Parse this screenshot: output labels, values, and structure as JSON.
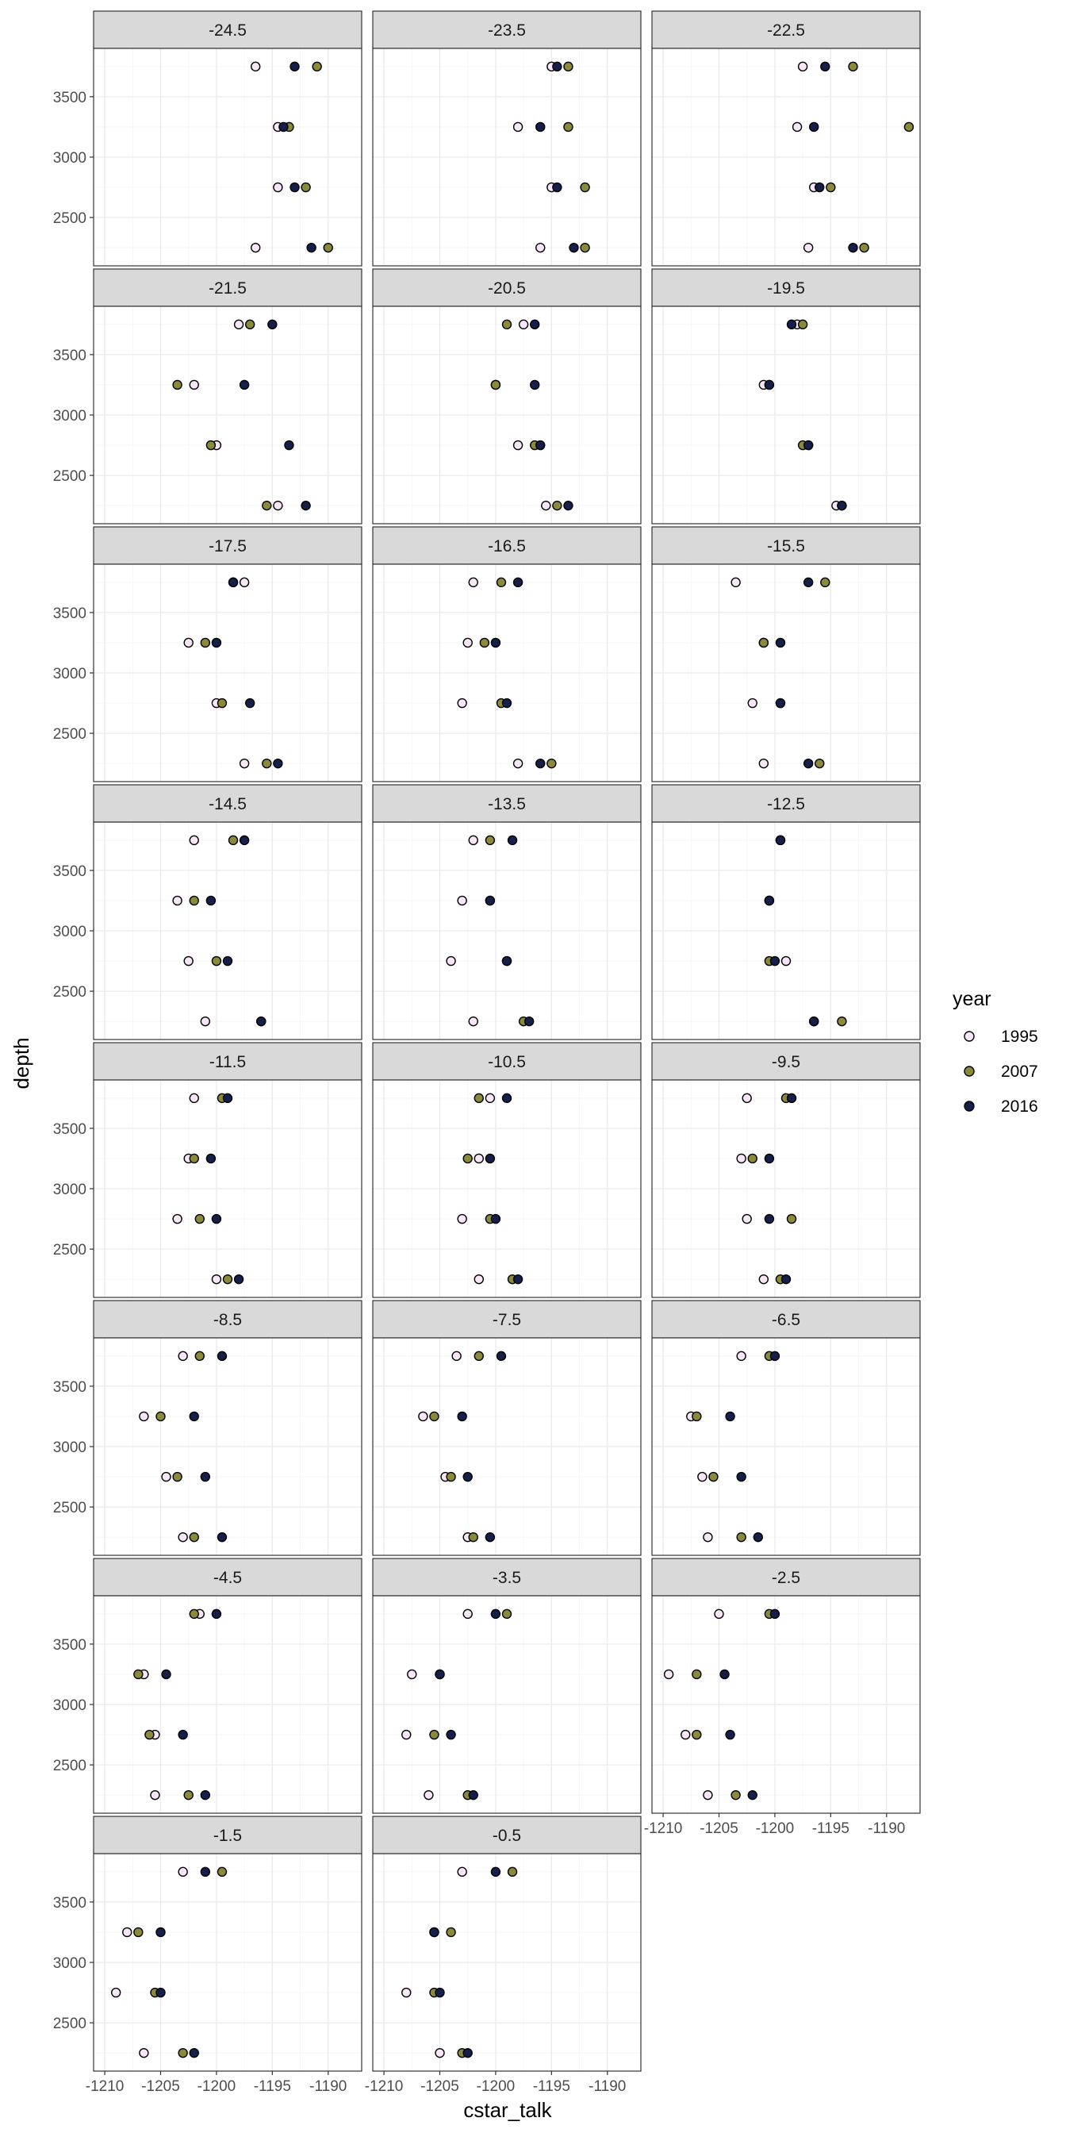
{
  "chart_data": {
    "type": "scatter",
    "xlabel": "cstar_talk",
    "ylabel": "depth",
    "xlim": [
      -1211,
      -1187
    ],
    "ylim": [
      3900,
      2100
    ],
    "x_ticks": [
      -1210,
      -1205,
      -1200,
      -1195,
      -1190
    ],
    "x_tick_labels": [
      "-1210",
      "-1205",
      "-1200",
      "-1195",
      "-1190"
    ],
    "y_ticks": [
      2500,
      3000,
      3500
    ],
    "y_tick_labels": [
      "2500",
      "3000",
      "3500"
    ],
    "depths": [
      2250,
      2750,
      3250,
      3750
    ],
    "grid": true,
    "legend": {
      "title": "year",
      "position": "right",
      "entries": [
        {
          "label": "1995",
          "color": "#f7e6f7"
        },
        {
          "label": "2007",
          "color": "#8a8a3a"
        },
        {
          "label": "2016",
          "color": "#14204a"
        }
      ]
    },
    "panels": [
      {
        "label": "-24.5",
        "series": {
          "1995": [
            -1196.5,
            -1194.5,
            -1194.5,
            -1196.5
          ],
          "2007": [
            -1190.0,
            -1192.0,
            -1193.5,
            -1191.0
          ],
          "2016": [
            -1191.5,
            -1193.0,
            -1194.0,
            -1193.0
          ]
        }
      },
      {
        "label": "-23.5",
        "series": {
          "1995": [
            -1196.0,
            -1195.0,
            -1198.0,
            -1195.0
          ],
          "2007": [
            -1192.0,
            -1192.0,
            -1193.5,
            -1193.5
          ],
          "2016": [
            -1193.0,
            -1194.5,
            -1196.0,
            -1194.5
          ]
        }
      },
      {
        "label": "-22.5",
        "series": {
          "1995": [
            -1197.0,
            -1196.5,
            -1198.0,
            -1197.5
          ],
          "2007": [
            -1192.0,
            -1195.0,
            -1188.0,
            -1193.0
          ],
          "2016": [
            -1193.0,
            -1196.0,
            -1196.5,
            -1195.5
          ]
        }
      },
      {
        "label": "-21.5",
        "series": {
          "1995": [
            -1194.5,
            -1200.0,
            -1202.0,
            -1198.0
          ],
          "2007": [
            -1195.5,
            -1200.5,
            -1203.5,
            -1197.0
          ],
          "2016": [
            -1192.0,
            -1193.5,
            -1197.5,
            -1195.0
          ]
        }
      },
      {
        "label": "-20.5",
        "series": {
          "1995": [
            -1195.5,
            -1198.0,
            -1200.0,
            -1197.5
          ],
          "2007": [
            -1194.5,
            -1196.5,
            -1200.0,
            -1199.0
          ],
          "2016": [
            -1193.5,
            -1196.0,
            -1196.5,
            -1196.5
          ]
        }
      },
      {
        "label": "-19.5",
        "series": {
          "1995": [
            -1194.5,
            -1197.0,
            -1201.0,
            -1198.0
          ],
          "2007": [
            -1194.0,
            -1197.5,
            -1200.5,
            -1197.5
          ],
          "2016": [
            -1194.0,
            -1197.0,
            -1200.5,
            -1198.5
          ]
        }
      },
      {
        "label": "-17.5",
        "series": {
          "1995": [
            -1197.5,
            -1200.0,
            -1202.5,
            -1197.5
          ],
          "2007": [
            -1195.5,
            -1199.5,
            -1201.0,
            -1198.5
          ],
          "2016": [
            -1194.5,
            -1197.0,
            -1200.0,
            -1198.5
          ]
        }
      },
      {
        "label": "-16.5",
        "series": {
          "1995": [
            -1198.0,
            -1203.0,
            -1202.5,
            -1202.0
          ],
          "2007": [
            -1195.0,
            -1199.5,
            -1201.0,
            -1199.5
          ],
          "2016": [
            -1196.0,
            -1199.0,
            -1200.0,
            -1198.0
          ]
        }
      },
      {
        "label": "-15.5",
        "series": {
          "1995": [
            -1201.0,
            -1202.0,
            -1201.0,
            -1203.5
          ],
          "2007": [
            -1196.0,
            -1199.5,
            -1201.0,
            -1195.5
          ],
          "2016": [
            -1197.0,
            -1199.5,
            -1199.5,
            -1197.0
          ]
        }
      },
      {
        "label": "-14.5",
        "series": {
          "1995": [
            -1201.0,
            -1202.5,
            -1203.5,
            -1202.0
          ],
          "2007": [
            -1196.0,
            -1200.0,
            -1202.0,
            -1198.5
          ],
          "2016": [
            -1196.0,
            -1199.0,
            -1200.5,
            -1197.5
          ]
        }
      },
      {
        "label": "-13.5",
        "series": {
          "1995": [
            -1202.0,
            -1204.0,
            -1203.0,
            -1202.0
          ],
          "2007": [
            -1197.5,
            -1199.0,
            -1200.5,
            -1200.5
          ],
          "2016": [
            -1197.0,
            -1199.0,
            -1200.5,
            -1198.5
          ]
        }
      },
      {
        "label": "-12.5",
        "series": {
          "1995": [
            -1196.5,
            -1199.0,
            -1200.5,
            -1199.5
          ],
          "2007": [
            -1194.0,
            -1200.5,
            -1200.5,
            -1199.5
          ],
          "2016": [
            -1196.5,
            -1200.0,
            -1200.5,
            -1199.5
          ]
        }
      },
      {
        "label": "-11.5",
        "series": {
          "1995": [
            -1200.0,
            -1203.5,
            -1202.5,
            -1202.0
          ],
          "2007": [
            -1199.0,
            -1201.5,
            -1202.0,
            -1199.5
          ],
          "2016": [
            -1198.0,
            -1200.0,
            -1200.5,
            -1199.0
          ]
        }
      },
      {
        "label": "-10.5",
        "series": {
          "1995": [
            -1201.5,
            -1203.0,
            -1201.5,
            -1200.5
          ],
          "2007": [
            -1198.5,
            -1200.5,
            -1202.5,
            -1201.5
          ],
          "2016": [
            -1198.0,
            -1200.0,
            -1200.5,
            -1199.0
          ]
        }
      },
      {
        "label": "-9.5",
        "series": {
          "1995": [
            -1201.0,
            -1202.5,
            -1203.0,
            -1202.5
          ],
          "2007": [
            -1199.5,
            -1198.5,
            -1202.0,
            -1199.0
          ],
          "2016": [
            -1199.0,
            -1200.5,
            -1200.5,
            -1198.5
          ]
        }
      },
      {
        "label": "-8.5",
        "series": {
          "1995": [
            -1203.0,
            -1204.5,
            -1206.5,
            -1203.0
          ],
          "2007": [
            -1202.0,
            -1203.5,
            -1205.0,
            -1201.5
          ],
          "2016": [
            -1199.5,
            -1201.0,
            -1202.0,
            -1199.5
          ]
        }
      },
      {
        "label": "-7.5",
        "series": {
          "1995": [
            -1202.5,
            -1204.5,
            -1206.5,
            -1203.5
          ],
          "2007": [
            -1202.0,
            -1204.0,
            -1205.5,
            -1201.5
          ],
          "2016": [
            -1200.5,
            -1202.5,
            -1203.0,
            -1199.5
          ]
        }
      },
      {
        "label": "-6.5",
        "series": {
          "1995": [
            -1206.0,
            -1206.5,
            -1207.5,
            -1203.0
          ],
          "2007": [
            -1203.0,
            -1205.5,
            -1207.0,
            -1200.5
          ],
          "2016": [
            -1201.5,
            -1203.0,
            -1204.0,
            -1200.0
          ]
        }
      },
      {
        "label": "-4.5",
        "series": {
          "1995": [
            -1205.5,
            -1205.5,
            -1206.5,
            -1201.5
          ],
          "2007": [
            -1202.5,
            -1206.0,
            -1207.0,
            -1202.0
          ],
          "2016": [
            -1201.0,
            -1203.0,
            -1204.5,
            -1200.0
          ]
        }
      },
      {
        "label": "-3.5",
        "series": {
          "1995": [
            -1206.0,
            -1208.0,
            -1207.5,
            -1202.5
          ],
          "2007": [
            -1202.5,
            -1205.5,
            -1205.0,
            -1199.0
          ],
          "2016": [
            -1202.0,
            -1204.0,
            -1205.0,
            -1200.0
          ]
        }
      },
      {
        "label": "-2.5",
        "series": {
          "1995": [
            -1206.0,
            -1208.0,
            -1209.5,
            -1205.0
          ],
          "2007": [
            -1203.5,
            -1207.0,
            -1207.0,
            -1200.5
          ],
          "2016": [
            -1202.0,
            -1204.0,
            -1204.5,
            -1200.0
          ]
        }
      },
      {
        "label": "-1.5",
        "series": {
          "1995": [
            -1206.5,
            -1209.0,
            -1208.0,
            -1203.0
          ],
          "2007": [
            -1203.0,
            -1205.5,
            -1207.0,
            -1199.5
          ],
          "2016": [
            -1202.0,
            -1205.0,
            -1205.0,
            -1201.0
          ]
        }
      },
      {
        "label": "-0.5",
        "series": {
          "1995": [
            -1205.0,
            -1208.0,
            -1205.5,
            -1203.0
          ],
          "2007": [
            -1203.0,
            -1205.5,
            -1204.0,
            -1198.5
          ],
          "2016": [
            -1202.5,
            -1205.0,
            -1205.5,
            -1200.0
          ]
        }
      }
    ]
  }
}
